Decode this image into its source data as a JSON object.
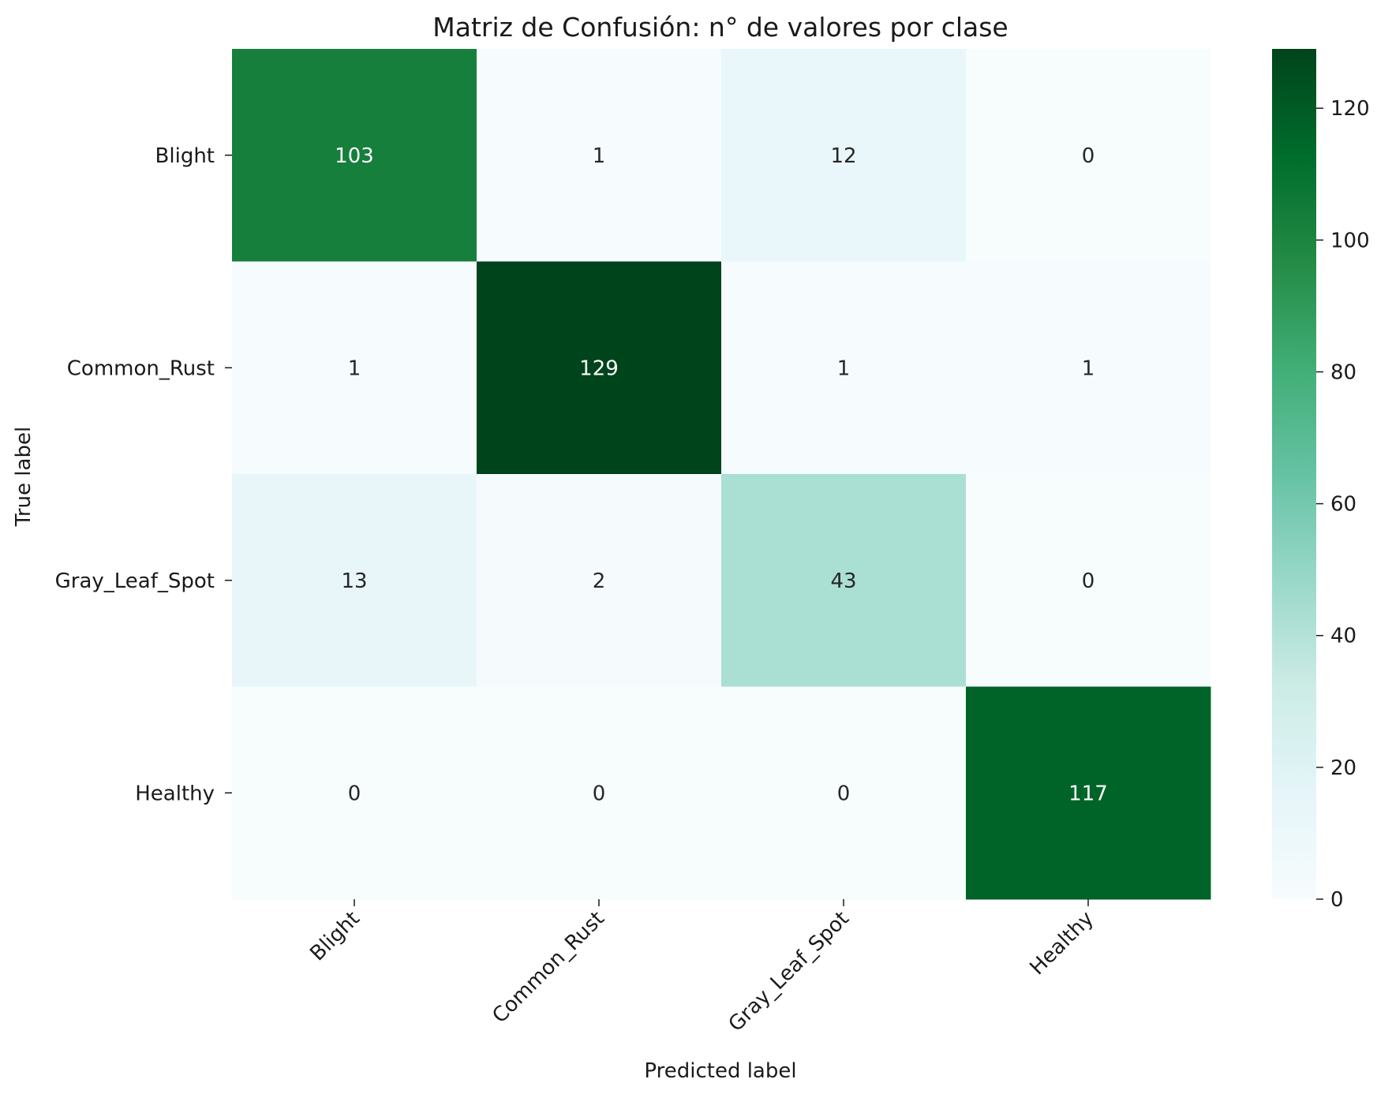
{
  "chart_data": {
    "type": "heatmap",
    "title": "Matriz de Confusión: n° de valores por clase",
    "xlabel": "Predicted label",
    "ylabel": "True label",
    "x_categories": [
      "Blight",
      "Common_Rust",
      "Gray_Leaf_Spot",
      "Healthy"
    ],
    "y_categories": [
      "Blight",
      "Common_Rust",
      "Gray_Leaf_Spot",
      "Healthy"
    ],
    "values": [
      [
        103,
        1,
        12,
        0
      ],
      [
        1,
        129,
        1,
        1
      ],
      [
        13,
        2,
        43,
        0
      ],
      [
        0,
        0,
        0,
        117
      ]
    ],
    "colorbar": {
      "min": 0,
      "max": 129,
      "ticks": [
        0,
        20,
        40,
        60,
        80,
        100,
        120
      ],
      "colors": [
        "#f7fcfd",
        "#e5f5f9",
        "#ccece6",
        "#99d8c9",
        "#66c2a4",
        "#41ae76",
        "#238b45",
        "#006d2c",
        "#00441b"
      ],
      "dark_color": "#1d4723",
      "mid_color": "#3d8b52"
    },
    "grid": false,
    "colorbar_position": "right"
  }
}
